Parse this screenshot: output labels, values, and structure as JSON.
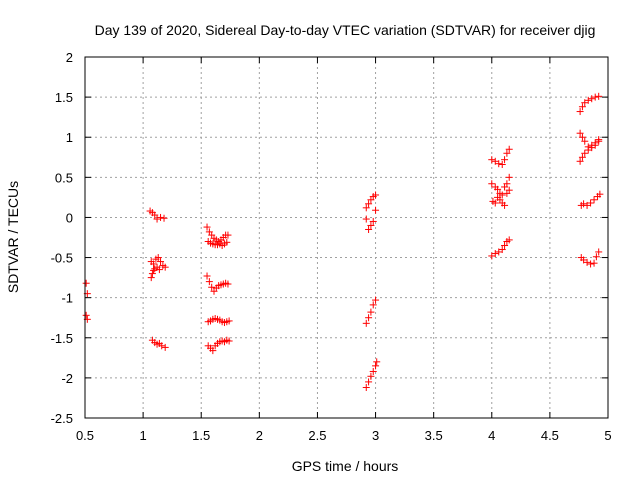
{
  "chart_data": {
    "type": "scatter",
    "title": "Day 139 of 2020, Sidereal Day-to-day VTEC variation (SDTVAR) for receiver djig",
    "xlabel": "GPS time / hours",
    "ylabel": "SDTVAR / TECUs",
    "xlim": [
      0.5,
      5
    ],
    "ylim": [
      -2.5,
      2
    ],
    "grid": true,
    "x_ticks": [
      "0.5",
      "1",
      "1.5",
      "2",
      "2.5",
      "3",
      "3.5",
      "4",
      "4.5",
      "5"
    ],
    "y_ticks": [
      "-2.5",
      "-2",
      "-1.5",
      "-1",
      "-0.5",
      "0",
      "0.5",
      "1",
      "1.5",
      "2"
    ],
    "marker": "+",
    "marker_color": "#ff0000",
    "series": [
      {
        "name": "SDTVAR",
        "points": [
          [
            0.51,
            -0.82
          ],
          [
            0.52,
            -0.95
          ],
          [
            0.51,
            -1.22
          ],
          [
            0.52,
            -1.27
          ],
          [
            1.06,
            0.08
          ],
          [
            1.08,
            0.06
          ],
          [
            1.1,
            0.03
          ],
          [
            1.12,
            -0.02
          ],
          [
            1.15,
            0.0
          ],
          [
            1.18,
            -0.01
          ],
          [
            1.07,
            -0.55
          ],
          [
            1.09,
            -0.58
          ],
          [
            1.11,
            -0.52
          ],
          [
            1.13,
            -0.5
          ],
          [
            1.15,
            -0.55
          ],
          [
            1.17,
            -0.6
          ],
          [
            1.19,
            -0.62
          ],
          [
            1.07,
            -0.75
          ],
          [
            1.08,
            -0.7
          ],
          [
            1.09,
            -0.66
          ],
          [
            1.1,
            -0.64
          ],
          [
            1.12,
            -0.62
          ],
          [
            1.14,
            -0.65
          ],
          [
            1.08,
            -1.53
          ],
          [
            1.1,
            -1.56
          ],
          [
            1.12,
            -1.58
          ],
          [
            1.14,
            -1.57
          ],
          [
            1.16,
            -1.6
          ],
          [
            1.19,
            -1.62
          ],
          [
            1.55,
            -0.12
          ],
          [
            1.57,
            -0.18
          ],
          [
            1.59,
            -0.22
          ],
          [
            1.61,
            -0.26
          ],
          [
            1.63,
            -0.28
          ],
          [
            1.65,
            -0.3
          ],
          [
            1.67,
            -0.28
          ],
          [
            1.69,
            -0.25
          ],
          [
            1.71,
            -0.22
          ],
          [
            1.73,
            -0.22
          ],
          [
            1.56,
            -0.3
          ],
          [
            1.58,
            -0.32
          ],
          [
            1.6,
            -0.33
          ],
          [
            1.62,
            -0.34
          ],
          [
            1.64,
            -0.34
          ],
          [
            1.66,
            -0.33
          ],
          [
            1.68,
            -0.35
          ],
          [
            1.7,
            -0.33
          ],
          [
            1.72,
            -0.31
          ],
          [
            1.55,
            -0.73
          ],
          [
            1.57,
            -0.8
          ],
          [
            1.59,
            -0.87
          ],
          [
            1.61,
            -0.92
          ],
          [
            1.63,
            -0.88
          ],
          [
            1.65,
            -0.85
          ],
          [
            1.67,
            -0.84
          ],
          [
            1.69,
            -0.83
          ],
          [
            1.71,
            -0.82
          ],
          [
            1.73,
            -0.83
          ],
          [
            1.56,
            -1.3
          ],
          [
            1.58,
            -1.29
          ],
          [
            1.6,
            -1.27
          ],
          [
            1.62,
            -1.26
          ],
          [
            1.64,
            -1.27
          ],
          [
            1.66,
            -1.28
          ],
          [
            1.68,
            -1.3
          ],
          [
            1.7,
            -1.31
          ],
          [
            1.72,
            -1.3
          ],
          [
            1.74,
            -1.29
          ],
          [
            1.56,
            -1.6
          ],
          [
            1.58,
            -1.63
          ],
          [
            1.6,
            -1.66
          ],
          [
            1.62,
            -1.6
          ],
          [
            1.64,
            -1.57
          ],
          [
            1.66,
            -1.55
          ],
          [
            1.68,
            -1.54
          ],
          [
            1.7,
            -1.55
          ],
          [
            1.72,
            -1.53
          ],
          [
            1.74,
            -1.54
          ],
          [
            2.92,
            0.12
          ],
          [
            2.94,
            0.17
          ],
          [
            2.96,
            0.22
          ],
          [
            2.98,
            0.26
          ],
          [
            3.0,
            0.28
          ],
          [
            2.92,
            -0.02
          ],
          [
            2.94,
            -0.15
          ],
          [
            2.96,
            -0.1
          ],
          [
            2.98,
            -0.05
          ],
          [
            3.0,
            0.09
          ],
          [
            2.92,
            -1.32
          ],
          [
            2.94,
            -1.25
          ],
          [
            2.96,
            -1.18
          ],
          [
            2.98,
            -1.09
          ],
          [
            3.0,
            -1.03
          ],
          [
            2.92,
            -2.12
          ],
          [
            2.94,
            -2.05
          ],
          [
            2.96,
            -1.98
          ],
          [
            2.98,
            -1.92
          ],
          [
            3.0,
            -1.85
          ],
          [
            3.01,
            -1.8
          ],
          [
            4.0,
            0.72
          ],
          [
            4.03,
            0.7
          ],
          [
            4.06,
            0.67
          ],
          [
            4.09,
            0.66
          ],
          [
            4.11,
            0.72
          ],
          [
            4.13,
            0.8
          ],
          [
            4.15,
            0.85
          ],
          [
            4.0,
            0.42
          ],
          [
            4.03,
            0.38
          ],
          [
            4.05,
            0.35
          ],
          [
            4.07,
            0.3
          ],
          [
            4.09,
            0.28
          ],
          [
            4.11,
            0.38
          ],
          [
            4.13,
            0.42
          ],
          [
            4.15,
            0.5
          ],
          [
            4.01,
            0.2
          ],
          [
            4.03,
            0.18
          ],
          [
            4.05,
            0.25
          ],
          [
            4.07,
            0.22
          ],
          [
            4.09,
            0.18
          ],
          [
            4.11,
            0.15
          ],
          [
            4.13,
            0.3
          ],
          [
            4.15,
            0.34
          ],
          [
            4.0,
            -0.48
          ],
          [
            4.03,
            -0.45
          ],
          [
            4.06,
            -0.43
          ],
          [
            4.09,
            -0.4
          ],
          [
            4.11,
            -0.35
          ],
          [
            4.13,
            -0.3
          ],
          [
            4.15,
            -0.28
          ],
          [
            4.76,
            1.32
          ],
          [
            4.78,
            1.38
          ],
          [
            4.8,
            1.43
          ],
          [
            4.83,
            1.46
          ],
          [
            4.86,
            1.48
          ],
          [
            4.89,
            1.5
          ],
          [
            4.92,
            1.51
          ],
          [
            4.76,
            1.05
          ],
          [
            4.78,
            1.0
          ],
          [
            4.8,
            0.95
          ],
          [
            4.83,
            0.88
          ],
          [
            4.86,
            0.9
          ],
          [
            4.89,
            0.93
          ],
          [
            4.92,
            0.97
          ],
          [
            4.76,
            0.7
          ],
          [
            4.78,
            0.75
          ],
          [
            4.8,
            0.8
          ],
          [
            4.83,
            0.84
          ],
          [
            4.86,
            0.87
          ],
          [
            4.89,
            0.9
          ],
          [
            4.92,
            0.95
          ],
          [
            4.77,
            0.15
          ],
          [
            4.79,
            0.17
          ],
          [
            4.82,
            0.15
          ],
          [
            4.85,
            0.18
          ],
          [
            4.88,
            0.22
          ],
          [
            4.91,
            0.26
          ],
          [
            4.93,
            0.29
          ],
          [
            4.77,
            -0.5
          ],
          [
            4.79,
            -0.53
          ],
          [
            4.82,
            -0.56
          ],
          [
            4.85,
            -0.58
          ],
          [
            4.88,
            -0.57
          ],
          [
            4.9,
            -0.49
          ],
          [
            4.92,
            -0.43
          ]
        ]
      }
    ]
  }
}
